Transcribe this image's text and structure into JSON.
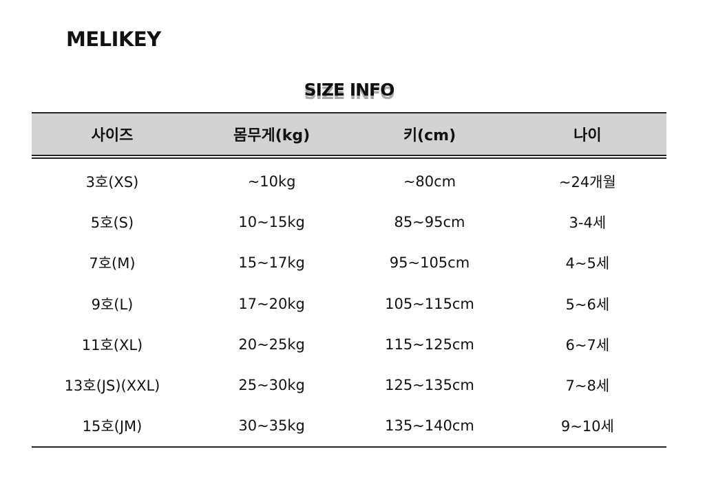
{
  "brand": "MELIKEY",
  "title": "SIZE INFO",
  "headers": [
    "사이즈",
    "몸무게(kg)",
    "키(cm)",
    "나이"
  ],
  "rows": [
    [
      "3호(XS)",
      "~10kg",
      "~80cm",
      "~24개월"
    ],
    [
      "5호(S)",
      "10~15kg",
      "85~95cm",
      "3-4세"
    ],
    [
      "7호(M)",
      "15~17kg",
      "95~105cm",
      "4~5세"
    ],
    [
      "9호(L)",
      "17~20kg",
      "105~115cm",
      "5~6세"
    ],
    [
      "11호(XL)",
      "20~25kg",
      "115~125cm",
      "6~7세"
    ],
    [
      "13호(JS)(XXL)",
      "25~30kg",
      "125~135cm",
      "7~8세"
    ],
    [
      "15호(JM)",
      "30~35kg",
      "135~140cm",
      "9~10세"
    ]
  ]
}
